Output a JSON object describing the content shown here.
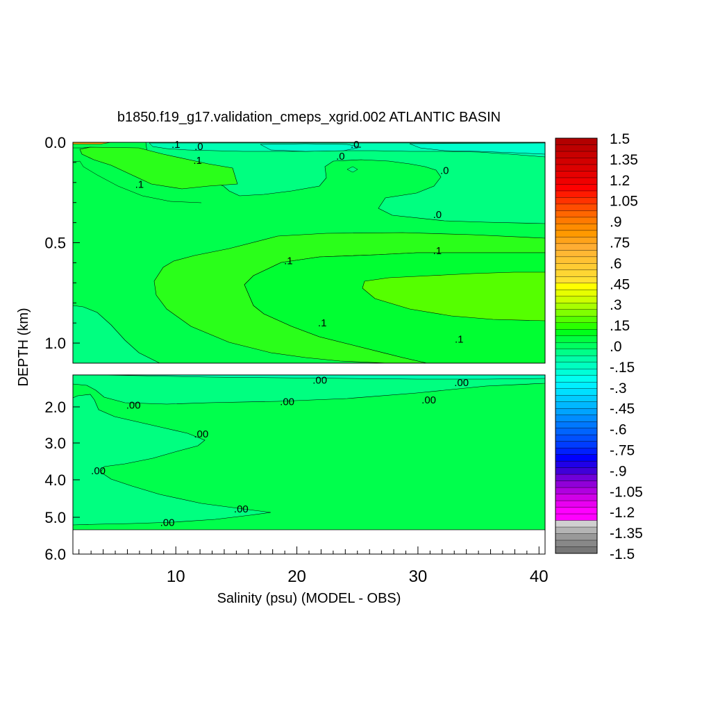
{
  "chart_data": {
    "type": "contour",
    "title": "b1850.f19_g17.validation_cmeps_xgrid.002 ATLANTIC BASIN",
    "xlabel": "Salinity (psu) (MODEL - OBS)",
    "ylabel": "DEPTH (km)",
    "xlim": [
      1.5,
      40.5
    ],
    "x_ticks": [
      "10",
      "20",
      "30",
      "40"
    ],
    "upper_panel": {
      "ylim": [
        0.0,
        1.1
      ],
      "y_ticks": [
        "0.0",
        "0.5",
        "1.0"
      ],
      "contour_labels": [
        {
          "text": ".1",
          "x": 10.0,
          "y": 0.01
        },
        {
          "text": ".0",
          "x": 11.9,
          "y": 0.02
        },
        {
          "text": ".0",
          "x": 24.8,
          "y": 0.01
        },
        {
          "text": ".0",
          "x": 23.6,
          "y": 0.07
        },
        {
          "text": ".1",
          "x": 11.8,
          "y": 0.09
        },
        {
          "text": ".0",
          "x": 32.2,
          "y": 0.14
        },
        {
          "text": ".1",
          "x": 7.0,
          "y": 0.21
        },
        {
          "text": ".0",
          "x": 31.6,
          "y": 0.36
        },
        {
          "text": ".1",
          "x": 31.6,
          "y": 0.54
        },
        {
          "text": ".1",
          "x": 19.3,
          "y": 0.59
        },
        {
          "text": ".1",
          "x": 22.1,
          "y": 0.9
        },
        {
          "text": ".1",
          "x": 33.4,
          "y": 0.98
        }
      ]
    },
    "lower_panel": {
      "ylim": [
        1.1,
        6.0
      ],
      "y_ticks": [
        "2.0",
        "3.0",
        "4.0",
        "5.0",
        "6.0"
      ],
      "data_bottom": 5.35,
      "contour_labels": [
        {
          "text": ".00",
          "x": 21.9,
          "y": 1.25
        },
        {
          "text": ".00",
          "x": 33.6,
          "y": 1.32
        },
        {
          "text": ".00",
          "x": 6.5,
          "y": 1.95
        },
        {
          "text": ".00",
          "x": 19.2,
          "y": 1.85
        },
        {
          "text": ".00",
          "x": 30.9,
          "y": 1.8
        },
        {
          "text": ".00",
          "x": 12.1,
          "y": 2.75
        },
        {
          "text": ".00",
          "x": 3.6,
          "y": 3.75
        },
        {
          "text": ".00",
          "x": 15.4,
          "y": 4.78
        },
        {
          "text": ".00",
          "x": 9.3,
          "y": 5.14
        }
      ]
    },
    "colorbar": {
      "min": -1.5,
      "max": 1.5,
      "step": 0.05,
      "labels": [
        "1.5",
        "1.35",
        "1.2",
        "1.05",
        ".9",
        ".75",
        ".6",
        ".45",
        ".3",
        ".15",
        ".0",
        "-.15",
        "-.3",
        "-.45",
        "-.6",
        "-.75",
        "-.9",
        "-1.05",
        "-1.2",
        "-1.35",
        "-1.5"
      ],
      "colors_top_to_bottom": [
        "#b30000",
        "#bd0000",
        "#c80000",
        "#d20000",
        "#dc0000",
        "#e60000",
        "#f00000",
        "#ff0000",
        "#ff1a00",
        "#ff3300",
        "#ff4d00",
        "#ff6600",
        "#ff7a00",
        "#ff8c00",
        "#ff9900",
        "#ffa31a",
        "#ffad33",
        "#ffb833",
        "#ffc233",
        "#ffcc33",
        "#ffd633",
        "#ffe033",
        "#ffff00",
        "#e6ff00",
        "#ccff00",
        "#a8ff00",
        "#80ff00",
        "#55ff00",
        "#2bff00",
        "#00ff1a",
        "#00ff40",
        "#00ff60",
        "#00ff88",
        "#00ffa8",
        "#00ffc0",
        "#00ffd8",
        "#00fff0",
        "#00f0ff",
        "#00e0ff",
        "#00ccff",
        "#00b8ff",
        "#00a3ff",
        "#008cff",
        "#0078ff",
        "#0064ff",
        "#0050ff",
        "#003cff",
        "#0020ff",
        "#0000ff",
        "#2000e8",
        "#4000d8",
        "#7000d8",
        "#9000d8",
        "#b000e0",
        "#d000e8",
        "#e800f0",
        "#ff00ff",
        "#ff00ff",
        "#d0d0d0",
        "#b4b4b4",
        "#999999",
        "#888888",
        "#777777"
      ]
    },
    "fill_colors": {
      "green_base": "#00ff4c",
      "green_light": "#00ff32",
      "green_bright": "#2aff1a",
      "green_yellow": "#55ff00",
      "teal_green": "#00ff80",
      "aqua": "#00ffb3",
      "cyan": "#00ffcc",
      "orange": "#ff9900"
    }
  }
}
